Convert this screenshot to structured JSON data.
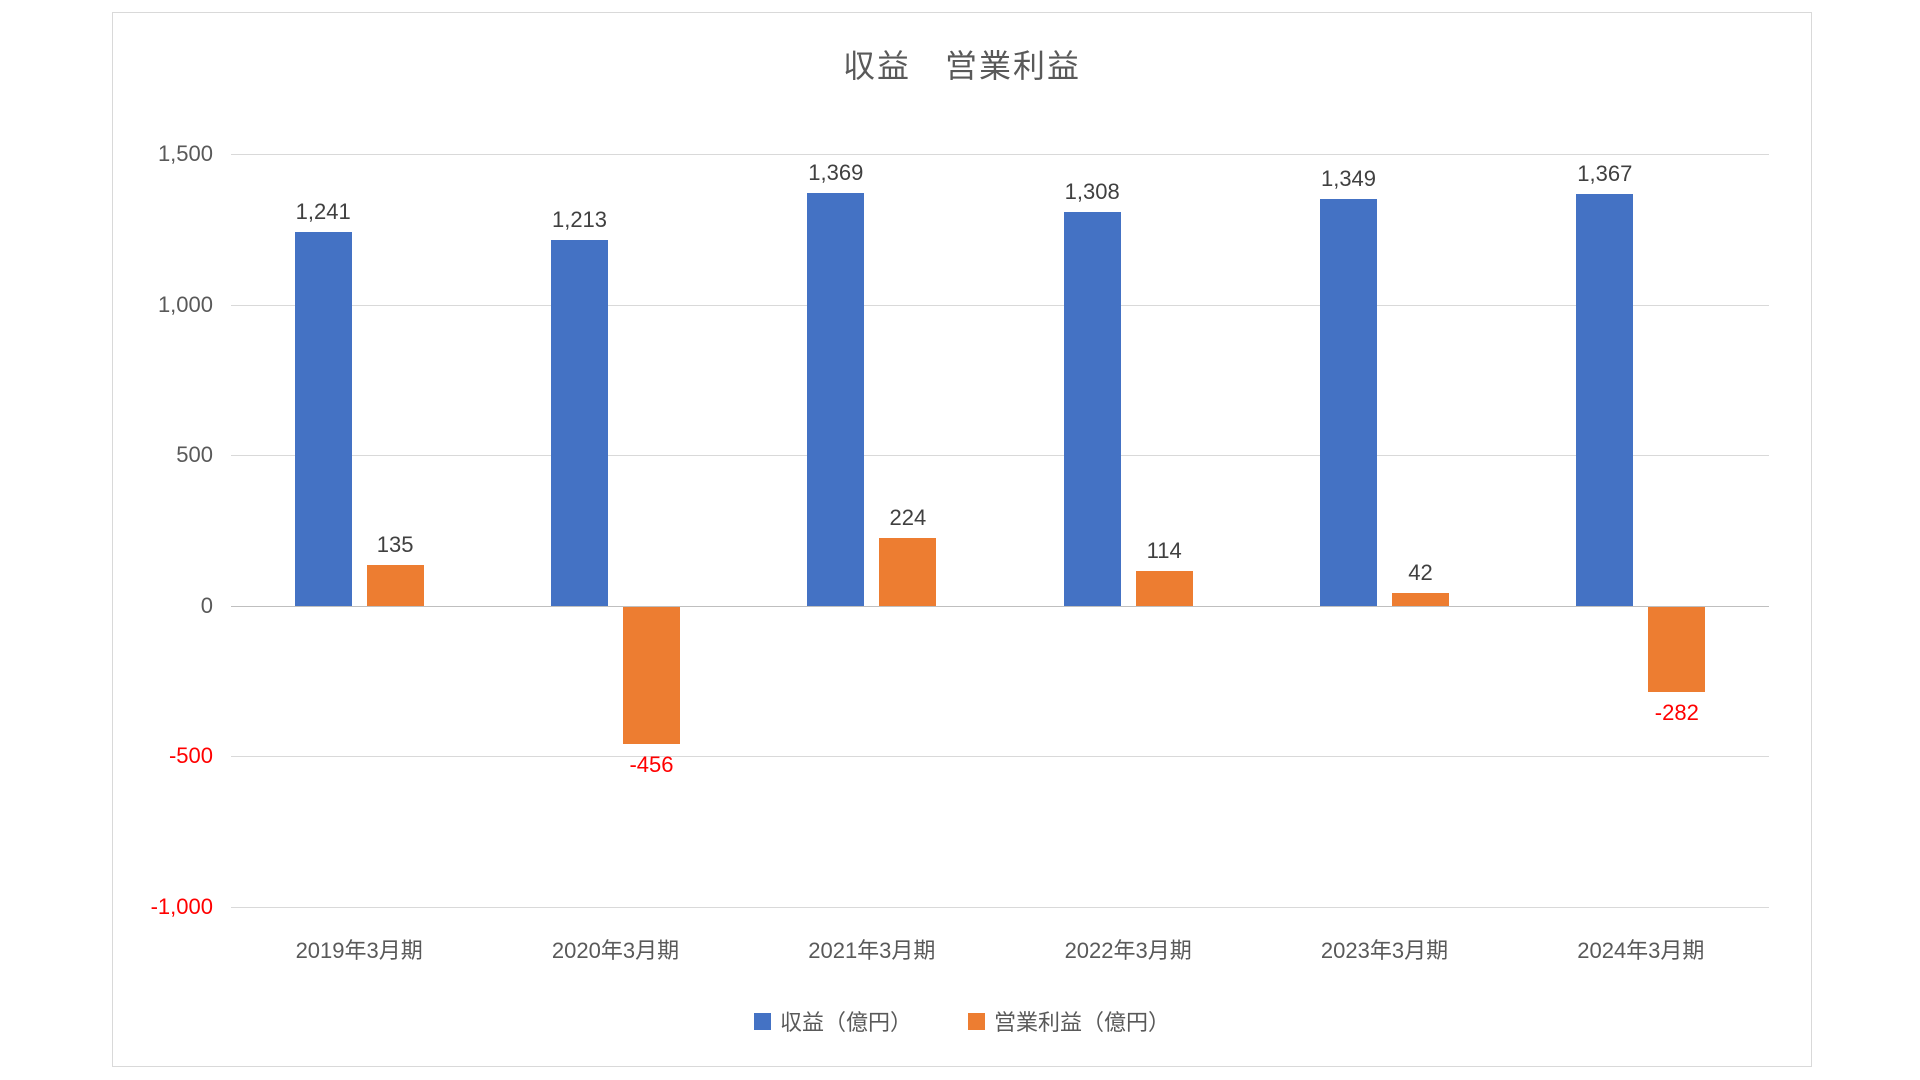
{
  "chart": {
    "title": "収益　営業利益"
  },
  "chart_data": {
    "type": "bar",
    "title": "収益　営業利益",
    "categories": [
      "2019年3月期",
      "2020年3月期",
      "2021年3月期",
      "2022年3月期",
      "2023年3月期",
      "2024年3月期"
    ],
    "series": [
      {
        "name": "収益（億円）",
        "color": "#4472C4",
        "values": [
          1241,
          1213,
          1369,
          1308,
          1349,
          1367
        ],
        "labels": [
          "1,241",
          "1,213",
          "1,369",
          "1,308",
          "1,349",
          "1,367"
        ]
      },
      {
        "name": "営業利益（億円）",
        "color": "#ED7D31",
        "values": [
          135,
          -456,
          224,
          114,
          42,
          -282
        ],
        "labels": [
          "135",
          "-456",
          "224",
          "114",
          "42",
          "-282"
        ]
      }
    ],
    "xlabel": "",
    "ylabel": "",
    "y_axis": {
      "min": -1000,
      "max": 1500,
      "step": 500,
      "ticks": [
        {
          "label": "1,500",
          "value": 1500
        },
        {
          "label": "1,000",
          "value": 1000
        },
        {
          "label": "500",
          "value": 500
        },
        {
          "label": "0",
          "value": 0
        },
        {
          "label": "-500",
          "value": -500
        },
        {
          "label": "-1,000",
          "value": -1000
        }
      ]
    },
    "grid": true,
    "legend_position": "bottom",
    "colors": {
      "title_text": "#595959",
      "axis_text": "#595959",
      "data_label_text": "#404040",
      "negative_text": "#FF0000",
      "gridline": "#D9D9D9",
      "zero_axis_line": "#BFBFBF",
      "frame_border": "#D9D9D9",
      "background": "#FFFFFF"
    }
  }
}
